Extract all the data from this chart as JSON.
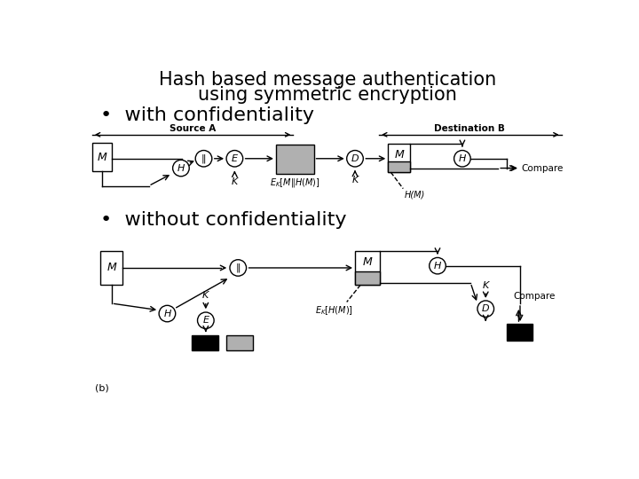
{
  "title_line1": "Hash based message authentication",
  "title_line2": "using symmetric encryption",
  "bullet1": "•  with confidentiality",
  "bullet2": "•  without confidentiality",
  "bg_color": "#ffffff",
  "title_fontsize": 15,
  "bullet_fontsize": 16,
  "diagram_fontsize": 8
}
